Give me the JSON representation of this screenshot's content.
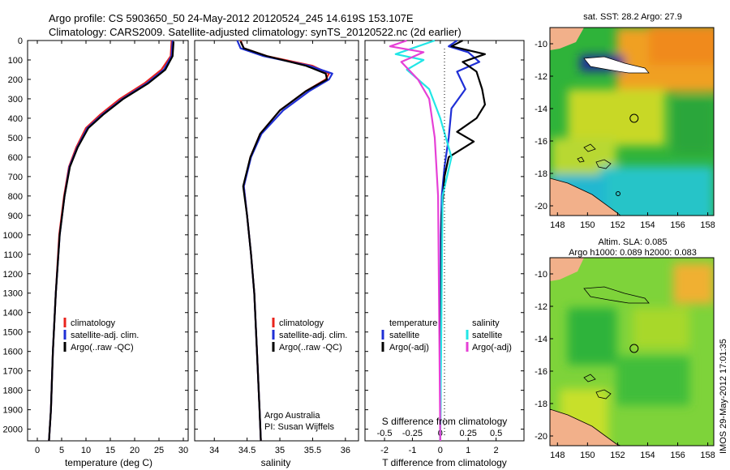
{
  "header": {
    "line1": "Argo profile: CS 5903650_50 24-May-2012 20120524_245 14.619S 153.107E",
    "line2": "Climatology: CARS2009. Satellite-adjusted climatology: synTS_20120522.nc (2d earlier)"
  },
  "colors": {
    "climatology": "#e8231c",
    "satellite": "#1f2fd6",
    "argo": "#000000",
    "cyan": "#22e6e6",
    "magenta": "#e640d6"
  },
  "chart_data": [
    {
      "type": "line",
      "panel": "temperature",
      "xlabel": "temperature (deg C)",
      "ylabel": "",
      "xlim": [
        -2,
        31
      ],
      "ylim": [
        2060,
        0
      ],
      "xticks": [
        0,
        5,
        10,
        15,
        20,
        25,
        30
      ],
      "yticks": [
        0,
        100,
        200,
        300,
        400,
        500,
        600,
        700,
        800,
        900,
        1000,
        1100,
        1200,
        1300,
        1400,
        1500,
        1600,
        1700,
        1800,
        1900,
        2000
      ],
      "legend": [
        "climatology",
        "satellite-adj. clim.",
        "Argo(..raw -QC)"
      ],
      "series": [
        {
          "name": "climatology",
          "color": "climatology",
          "x": [
            27.6,
            27.4,
            25.5,
            22,
            17,
            13,
            10,
            8,
            6.5,
            5.5,
            4.5,
            3.8,
            3.2,
            2.8,
            2.4
          ],
          "y": [
            0,
            80,
            150,
            220,
            300,
            380,
            450,
            550,
            650,
            800,
            1000,
            1300,
            1600,
            1900,
            2060
          ]
        },
        {
          "name": "satellite-adj. clim.",
          "color": "satellite",
          "x": [
            27.8,
            27.6,
            26,
            22.5,
            17.5,
            13.4,
            10.3,
            8.2,
            6.6,
            5.6,
            4.6,
            3.8,
            3.2,
            2.8,
            2.4
          ],
          "y": [
            0,
            80,
            150,
            220,
            300,
            380,
            450,
            550,
            650,
            800,
            1000,
            1300,
            1600,
            1900,
            2060
          ]
        },
        {
          "name": "Argo(..raw -QC)",
          "color": "argo",
          "x": [
            28,
            27.8,
            26.3,
            22.8,
            17.7,
            13.6,
            10.5,
            8.3,
            6.7,
            5.6,
            4.6,
            3.8,
            3.2,
            2.8,
            2.4
          ],
          "y": [
            5,
            80,
            150,
            220,
            300,
            380,
            450,
            550,
            650,
            800,
            1000,
            1300,
            1600,
            1900,
            2060
          ]
        }
      ]
    },
    {
      "type": "line",
      "panel": "salinity",
      "xlabel": "salinity",
      "xlim": [
        33.7,
        36.2
      ],
      "ylim": [
        2060,
        0
      ],
      "xticks": [
        34,
        34.5,
        35,
        35.5,
        36
      ],
      "legend": [
        "climatology",
        "satellite-adj. clim.",
        "Argo(..raw -QC)"
      ],
      "annotation": [
        "Argo Australia",
        "PI: Susan Wijffels"
      ],
      "series": [
        {
          "name": "climatology",
          "color": "climatology",
          "x": [
            34.4,
            34.45,
            34.8,
            35.5,
            35.75,
            35.7,
            35.4,
            35,
            34.7,
            34.55,
            34.45,
            34.5,
            34.56,
            34.61,
            34.65,
            34.69,
            34.71
          ],
          "y": [
            0,
            40,
            80,
            130,
            170,
            200,
            260,
            360,
            480,
            600,
            750,
            900,
            1100,
            1300,
            1600,
            1900,
            2060
          ]
        },
        {
          "name": "satellite-adj. clim.",
          "color": "satellite",
          "x": [
            34.35,
            34.4,
            34.75,
            35.45,
            35.8,
            35.75,
            35.45,
            35.05,
            34.72,
            34.56,
            34.45,
            34.5,
            34.56,
            34.61,
            34.65,
            34.69,
            34.71
          ],
          "y": [
            0,
            40,
            80,
            130,
            170,
            200,
            260,
            360,
            480,
            600,
            750,
            900,
            1100,
            1300,
            1600,
            1900,
            2060
          ]
        },
        {
          "name": "Argo(..raw -QC)",
          "color": "argo",
          "x": [
            34.4,
            34.45,
            34.8,
            35.4,
            35.7,
            35.72,
            35.4,
            35.0,
            34.7,
            34.55,
            34.44,
            34.5,
            34.56,
            34.61,
            34.65,
            34.69,
            34.71
          ],
          "y": [
            5,
            40,
            80,
            130,
            170,
            200,
            260,
            360,
            480,
            600,
            750,
            900,
            1100,
            1300,
            1600,
            1900,
            2060
          ]
        }
      ]
    },
    {
      "type": "line",
      "panel": "difference",
      "xlabel": "T difference from climatology",
      "xlabel_top": "S difference from climatology",
      "xlim": [
        -2.7,
        3.0
      ],
      "ylim": [
        2060,
        0
      ],
      "xticks": [
        -2,
        -1,
        0,
        1,
        2
      ],
      "xticks_s": [
        -0.5,
        -0.25,
        0,
        0.25,
        0.5
      ],
      "xticks_s_labels": [
        "-0.5",
        "-0.25",
        "0",
        "0.25",
        "0.5"
      ],
      "legend_t": {
        "header": "temperature",
        "items": [
          "satellite",
          "Argo(-adj)"
        ]
      },
      "legend_s": {
        "header": "salinity",
        "items": [
          "satellite",
          "Argo(-adj)"
        ]
      },
      "series": [
        {
          "name": "temperature satellite",
          "color": "satellite",
          "x": [
            0.6,
            0.3,
            1.0,
            1.4,
            0.6,
            0.9,
            0.4,
            0.3,
            0.15,
            0.05,
            0.02,
            0
          ],
          "y": [
            0,
            30,
            60,
            110,
            160,
            250,
            350,
            500,
            650,
            800,
            1000,
            2060
          ]
        },
        {
          "name": "temperature Argo(-adj)",
          "color": "argo",
          "x": [
            0.8,
            0.4,
            1.6,
            0.8,
            1.3,
            1.5,
            1.6,
            1.3,
            0.6,
            1.2,
            0.3,
            0.15,
            0.05,
            0
          ],
          "y": [
            0,
            30,
            70,
            110,
            160,
            250,
            330,
            400,
            470,
            520,
            600,
            700,
            900,
            2060
          ]
        },
        {
          "name": "salinity satellite",
          "color": "cyan",
          "x": [
            -0.05,
            -0.25,
            -0.4,
            -0.15,
            -0.3,
            -0.1,
            0.0,
            0.1,
            0.02,
            0
          ],
          "y": [
            0,
            40,
            70,
            100,
            150,
            250,
            400,
            600,
            800,
            2060
          ]
        },
        {
          "name": "salinity Argo(-adj)",
          "color": "magenta",
          "x": [
            -0.3,
            -0.45,
            -0.15,
            -0.35,
            -0.2,
            -0.1,
            -0.05,
            -0.02,
            0
          ],
          "y": [
            0,
            30,
            60,
            110,
            200,
            300,
            500,
            800,
            2060
          ]
        }
      ]
    },
    {
      "type": "heatmap",
      "panel": "map-sst",
      "title": "sat. SST: 28.2  Argo: 27.9",
      "xlim": [
        147.5,
        158.4
      ],
      "ylim": [
        -20.6,
        -9.0
      ],
      "xticks": [
        148,
        150,
        152,
        154,
        156,
        158
      ],
      "yticks": [
        -10,
        -12,
        -14,
        -16,
        -18,
        -20
      ],
      "marker": {
        "lon": 153.1,
        "lat": -14.6
      }
    },
    {
      "type": "heatmap",
      "panel": "map-sla",
      "title": "Altim. SLA: 0.085",
      "subtitle": "Argo h1000: 0.089 h2000: 0.083",
      "xlim": [
        147.5,
        158.4
      ],
      "ylim": [
        -20.6,
        -9.0
      ],
      "xticks": [
        148,
        150,
        152,
        154,
        156,
        158
      ],
      "yticks": [
        -10,
        -12,
        -14,
        -16,
        -18,
        -20
      ],
      "marker": {
        "lon": 153.1,
        "lat": -14.6
      }
    }
  ],
  "footer": {
    "stamp": "IMOS 29-May-2012 17:01:35"
  }
}
